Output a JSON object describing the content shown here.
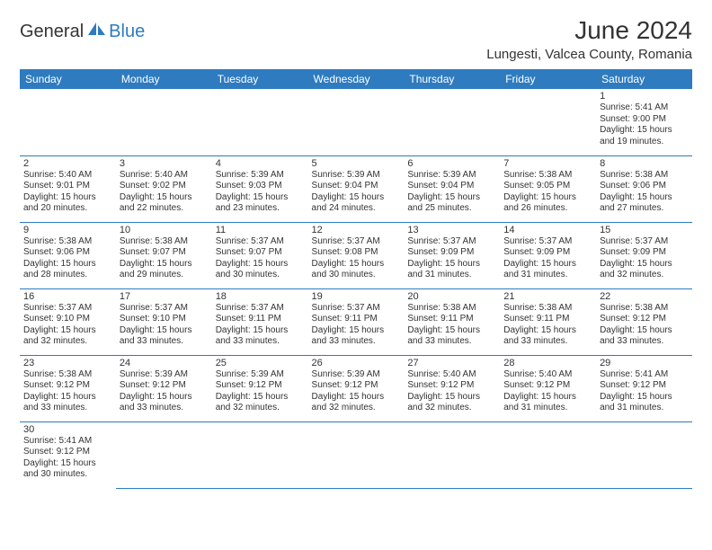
{
  "brand": {
    "part1": "General",
    "part2": "Blue"
  },
  "title": "June 2024",
  "location": "Lungesti, Valcea County, Romania",
  "colors": {
    "header_bg": "#2e7bc0",
    "header_text": "#ffffff",
    "grid_border": "#2e7bc0",
    "text": "#333333",
    "background": "#ffffff"
  },
  "day_headers": [
    "Sunday",
    "Monday",
    "Tuesday",
    "Wednesday",
    "Thursday",
    "Friday",
    "Saturday"
  ],
  "weeks": [
    [
      null,
      null,
      null,
      null,
      null,
      null,
      {
        "n": "1",
        "sr": "Sunrise: 5:41 AM",
        "ss": "Sunset: 9:00 PM",
        "dl1": "Daylight: 15 hours",
        "dl2": "and 19 minutes."
      }
    ],
    [
      {
        "n": "2",
        "sr": "Sunrise: 5:40 AM",
        "ss": "Sunset: 9:01 PM",
        "dl1": "Daylight: 15 hours",
        "dl2": "and 20 minutes."
      },
      {
        "n": "3",
        "sr": "Sunrise: 5:40 AM",
        "ss": "Sunset: 9:02 PM",
        "dl1": "Daylight: 15 hours",
        "dl2": "and 22 minutes."
      },
      {
        "n": "4",
        "sr": "Sunrise: 5:39 AM",
        "ss": "Sunset: 9:03 PM",
        "dl1": "Daylight: 15 hours",
        "dl2": "and 23 minutes."
      },
      {
        "n": "5",
        "sr": "Sunrise: 5:39 AM",
        "ss": "Sunset: 9:04 PM",
        "dl1": "Daylight: 15 hours",
        "dl2": "and 24 minutes."
      },
      {
        "n": "6",
        "sr": "Sunrise: 5:39 AM",
        "ss": "Sunset: 9:04 PM",
        "dl1": "Daylight: 15 hours",
        "dl2": "and 25 minutes."
      },
      {
        "n": "7",
        "sr": "Sunrise: 5:38 AM",
        "ss": "Sunset: 9:05 PM",
        "dl1": "Daylight: 15 hours",
        "dl2": "and 26 minutes."
      },
      {
        "n": "8",
        "sr": "Sunrise: 5:38 AM",
        "ss": "Sunset: 9:06 PM",
        "dl1": "Daylight: 15 hours",
        "dl2": "and 27 minutes."
      }
    ],
    [
      {
        "n": "9",
        "sr": "Sunrise: 5:38 AM",
        "ss": "Sunset: 9:06 PM",
        "dl1": "Daylight: 15 hours",
        "dl2": "and 28 minutes."
      },
      {
        "n": "10",
        "sr": "Sunrise: 5:38 AM",
        "ss": "Sunset: 9:07 PM",
        "dl1": "Daylight: 15 hours",
        "dl2": "and 29 minutes."
      },
      {
        "n": "11",
        "sr": "Sunrise: 5:37 AM",
        "ss": "Sunset: 9:07 PM",
        "dl1": "Daylight: 15 hours",
        "dl2": "and 30 minutes."
      },
      {
        "n": "12",
        "sr": "Sunrise: 5:37 AM",
        "ss": "Sunset: 9:08 PM",
        "dl1": "Daylight: 15 hours",
        "dl2": "and 30 minutes."
      },
      {
        "n": "13",
        "sr": "Sunrise: 5:37 AM",
        "ss": "Sunset: 9:09 PM",
        "dl1": "Daylight: 15 hours",
        "dl2": "and 31 minutes."
      },
      {
        "n": "14",
        "sr": "Sunrise: 5:37 AM",
        "ss": "Sunset: 9:09 PM",
        "dl1": "Daylight: 15 hours",
        "dl2": "and 31 minutes."
      },
      {
        "n": "15",
        "sr": "Sunrise: 5:37 AM",
        "ss": "Sunset: 9:09 PM",
        "dl1": "Daylight: 15 hours",
        "dl2": "and 32 minutes."
      }
    ],
    [
      {
        "n": "16",
        "sr": "Sunrise: 5:37 AM",
        "ss": "Sunset: 9:10 PM",
        "dl1": "Daylight: 15 hours",
        "dl2": "and 32 minutes."
      },
      {
        "n": "17",
        "sr": "Sunrise: 5:37 AM",
        "ss": "Sunset: 9:10 PM",
        "dl1": "Daylight: 15 hours",
        "dl2": "and 33 minutes."
      },
      {
        "n": "18",
        "sr": "Sunrise: 5:37 AM",
        "ss": "Sunset: 9:11 PM",
        "dl1": "Daylight: 15 hours",
        "dl2": "and 33 minutes."
      },
      {
        "n": "19",
        "sr": "Sunrise: 5:37 AM",
        "ss": "Sunset: 9:11 PM",
        "dl1": "Daylight: 15 hours",
        "dl2": "and 33 minutes."
      },
      {
        "n": "20",
        "sr": "Sunrise: 5:38 AM",
        "ss": "Sunset: 9:11 PM",
        "dl1": "Daylight: 15 hours",
        "dl2": "and 33 minutes."
      },
      {
        "n": "21",
        "sr": "Sunrise: 5:38 AM",
        "ss": "Sunset: 9:11 PM",
        "dl1": "Daylight: 15 hours",
        "dl2": "and 33 minutes."
      },
      {
        "n": "22",
        "sr": "Sunrise: 5:38 AM",
        "ss": "Sunset: 9:12 PM",
        "dl1": "Daylight: 15 hours",
        "dl2": "and 33 minutes."
      }
    ],
    [
      {
        "n": "23",
        "sr": "Sunrise: 5:38 AM",
        "ss": "Sunset: 9:12 PM",
        "dl1": "Daylight: 15 hours",
        "dl2": "and 33 minutes."
      },
      {
        "n": "24",
        "sr": "Sunrise: 5:39 AM",
        "ss": "Sunset: 9:12 PM",
        "dl1": "Daylight: 15 hours",
        "dl2": "and 33 minutes."
      },
      {
        "n": "25",
        "sr": "Sunrise: 5:39 AM",
        "ss": "Sunset: 9:12 PM",
        "dl1": "Daylight: 15 hours",
        "dl2": "and 32 minutes."
      },
      {
        "n": "26",
        "sr": "Sunrise: 5:39 AM",
        "ss": "Sunset: 9:12 PM",
        "dl1": "Daylight: 15 hours",
        "dl2": "and 32 minutes."
      },
      {
        "n": "27",
        "sr": "Sunrise: 5:40 AM",
        "ss": "Sunset: 9:12 PM",
        "dl1": "Daylight: 15 hours",
        "dl2": "and 32 minutes."
      },
      {
        "n": "28",
        "sr": "Sunrise: 5:40 AM",
        "ss": "Sunset: 9:12 PM",
        "dl1": "Daylight: 15 hours",
        "dl2": "and 31 minutes."
      },
      {
        "n": "29",
        "sr": "Sunrise: 5:41 AM",
        "ss": "Sunset: 9:12 PM",
        "dl1": "Daylight: 15 hours",
        "dl2": "and 31 minutes."
      }
    ],
    [
      {
        "n": "30",
        "sr": "Sunrise: 5:41 AM",
        "ss": "Sunset: 9:12 PM",
        "dl1": "Daylight: 15 hours",
        "dl2": "and 30 minutes."
      },
      null,
      null,
      null,
      null,
      null,
      null
    ]
  ]
}
